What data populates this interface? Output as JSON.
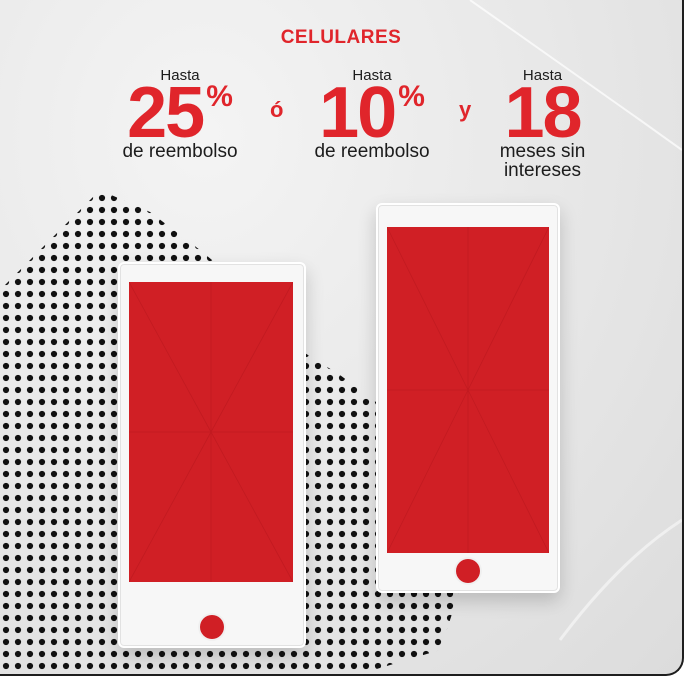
{
  "header": {
    "title": "CELULARES"
  },
  "offers": [
    {
      "prefix": "Hasta",
      "value": "25",
      "unit": "%",
      "suffix": "de reembolso"
    },
    {
      "prefix": "Hasta",
      "value": "10",
      "unit": "%",
      "suffix": "de reembolso"
    },
    {
      "prefix": "Hasta",
      "value": "18",
      "unit": "",
      "suffix_line1": "meses sin",
      "suffix_line2": "intereses"
    }
  ],
  "connectors": {
    "or": "ó",
    "and": "y"
  },
  "colors": {
    "accent": "#e0252b",
    "screen": "#d01f25",
    "text": "#1c1c1c",
    "border": "#1e1e1e"
  }
}
